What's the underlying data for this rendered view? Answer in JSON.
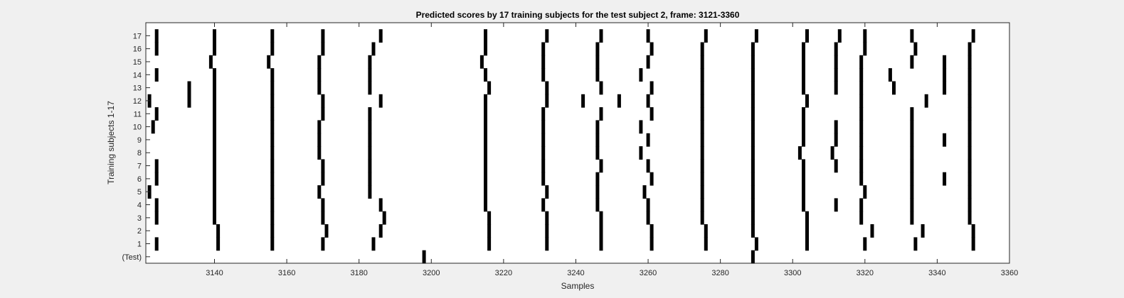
{
  "chart_data": {
    "type": "raster",
    "title": "Predicted scores by 17 training subjects for the test subject 2, frame: 3121-3360",
    "xlabel": "Samples",
    "ylabel": "Training subjects 1-17",
    "xlim": [
      3121,
      3360
    ],
    "xticks": [
      3140,
      3160,
      3180,
      3200,
      3220,
      3240,
      3260,
      3280,
      3300,
      3320,
      3340,
      3360
    ],
    "grid": false,
    "rows": [
      {
        "label": "(Test)",
        "events": [
          3198,
          3289
        ]
      },
      {
        "label": "1",
        "events": [
          3124,
          3141,
          3156,
          3170,
          3184,
          3216,
          3232,
          3247,
          3261,
          3276,
          3290,
          3304,
          3320,
          3334,
          3350
        ]
      },
      {
        "label": "2",
        "events": [
          3141,
          3156,
          3171,
          3186,
          3216,
          3232,
          3247,
          3261,
          3276,
          3289,
          3304,
          3322,
          3336,
          3350
        ]
      },
      {
        "label": "3",
        "events": [
          3124,
          3140,
          3156,
          3170,
          3187,
          3216,
          3232,
          3247,
          3260,
          3275,
          3289,
          3304,
          3319,
          3333,
          3349
        ]
      },
      {
        "label": "4",
        "events": [
          3124,
          3140,
          3156,
          3170,
          3186,
          3215,
          3231,
          3246,
          3260,
          3275,
          3289,
          3303,
          3312,
          3319,
          3333,
          3349
        ]
      },
      {
        "label": "5",
        "events": [
          3122,
          3140,
          3156,
          3169,
          3183,
          3215,
          3232,
          3246,
          3259,
          3275,
          3289,
          3303,
          3320,
          3333,
          3349
        ]
      },
      {
        "label": "6",
        "events": [
          3124,
          3140,
          3156,
          3170,
          3183,
          3215,
          3231,
          3246,
          3261,
          3275,
          3289,
          3303,
          3319,
          3333,
          3342,
          3349
        ]
      },
      {
        "label": "7",
        "events": [
          3124,
          3140,
          3156,
          3170,
          3183,
          3215,
          3231,
          3247,
          3260,
          3275,
          3289,
          3303,
          3312,
          3319,
          3333,
          3349
        ]
      },
      {
        "label": "8",
        "events": [
          3140,
          3156,
          3169,
          3183,
          3215,
          3231,
          3246,
          3258,
          3275,
          3289,
          3302,
          3311,
          3319,
          3333,
          3349
        ]
      },
      {
        "label": "9",
        "events": [
          3140,
          3156,
          3169,
          3183,
          3215,
          3231,
          3246,
          3260,
          3275,
          3289,
          3303,
          3312,
          3319,
          3333,
          3342,
          3349
        ]
      },
      {
        "label": "10",
        "events": [
          3123,
          3140,
          3156,
          3169,
          3183,
          3215,
          3231,
          3246,
          3258,
          3275,
          3289,
          3303,
          3312,
          3319,
          3333,
          3349
        ]
      },
      {
        "label": "11",
        "events": [
          3124,
          3140,
          3156,
          3170,
          3183,
          3215,
          3231,
          3247,
          3261,
          3275,
          3289,
          3303,
          3319,
          3333,
          3349
        ]
      },
      {
        "label": "12",
        "events": [
          3122,
          3133,
          3140,
          3156,
          3170,
          3186,
          3215,
          3232,
          3242,
          3252,
          3260,
          3275,
          3289,
          3304,
          3319,
          3337,
          3349
        ]
      },
      {
        "label": "13",
        "events": [
          3133,
          3140,
          3156,
          3169,
          3183,
          3216,
          3232,
          3247,
          3261,
          3275,
          3289,
          3303,
          3312,
          3319,
          3328,
          3342,
          3349
        ]
      },
      {
        "label": "14",
        "events": [
          3124,
          3140,
          3156,
          3169,
          3183,
          3215,
          3231,
          3246,
          3258,
          3275,
          3289,
          3303,
          3312,
          3319,
          3327,
          3342,
          3349
        ]
      },
      {
        "label": "15",
        "events": [
          3139,
          3155,
          3169,
          3183,
          3214,
          3231,
          3246,
          3260,
          3275,
          3289,
          3303,
          3312,
          3319,
          3333,
          3342,
          3349
        ]
      },
      {
        "label": "16",
        "events": [
          3124,
          3140,
          3156,
          3170,
          3184,
          3215,
          3231,
          3246,
          3261,
          3275,
          3289,
          3303,
          3312,
          3320,
          3334,
          3349
        ]
      },
      {
        "label": "17",
        "events": [
          3124,
          3140,
          3156,
          3170,
          3186,
          3215,
          3232,
          3247,
          3260,
          3276,
          3290,
          3304,
          3313,
          3320,
          3333,
          3350
        ]
      }
    ]
  }
}
